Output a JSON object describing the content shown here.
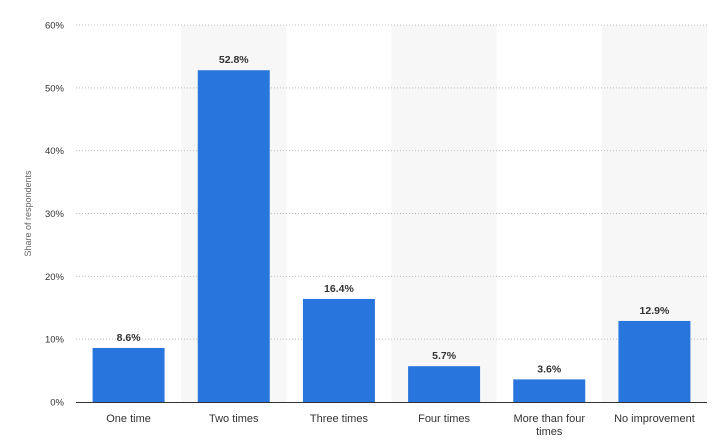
{
  "chart_data": {
    "type": "bar",
    "categories": [
      "One time",
      "Two times",
      "Three times",
      "Four times",
      "More than four times",
      "No improvement"
    ],
    "category_lines": [
      [
        "One time"
      ],
      [
        "Two times"
      ],
      [
        "Three times"
      ],
      [
        "Four times"
      ],
      [
        "More than four",
        "times"
      ],
      [
        "No improvement"
      ]
    ],
    "values": [
      8.6,
      52.8,
      16.4,
      5.7,
      3.6,
      12.9
    ],
    "data_labels": [
      "8.6%",
      "52.8%",
      "16.4%",
      "5.7%",
      "3.6%",
      "12.9%"
    ],
    "ylabel": "Share of respondents",
    "xlabel": "",
    "ylim": [
      0,
      60
    ],
    "yticks": [
      0,
      10,
      20,
      30,
      40,
      50,
      60
    ],
    "ytick_labels": [
      "0%",
      "10%",
      "20%",
      "30%",
      "40%",
      "50%",
      "60%"
    ],
    "grid": true,
    "legend": "none"
  },
  "colors": {
    "bar": "#2876dd",
    "band": "#f7f7f7",
    "grid": "#bdbdbd",
    "text": "#333333"
  }
}
